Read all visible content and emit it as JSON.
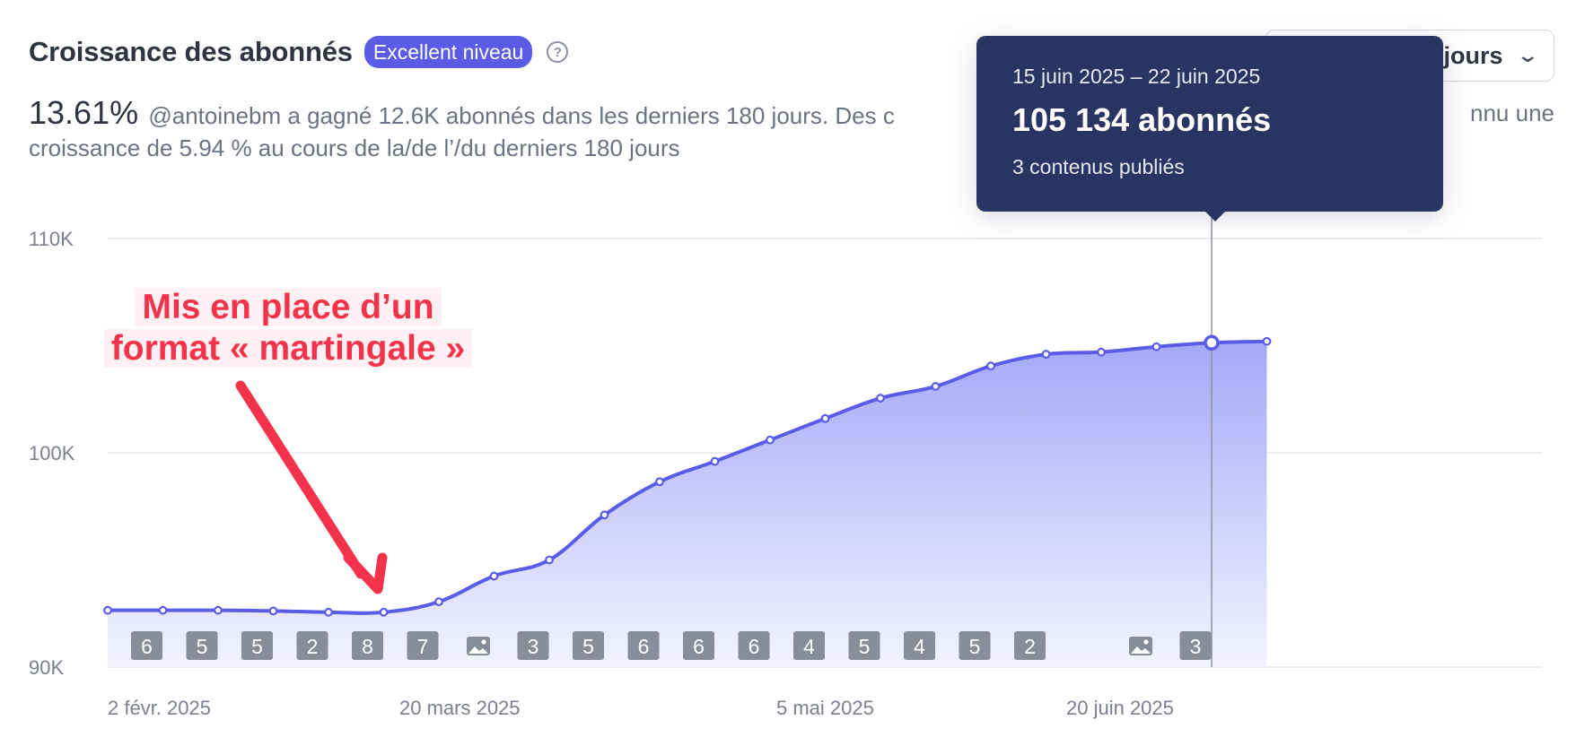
{
  "header": {
    "title": "Croissance des abonnés",
    "badge": "Excellent niveau",
    "help_icon": "question-circle-icon",
    "period_select": "jours"
  },
  "summary": {
    "growth_percent": "13.61%",
    "text": "@antoinebm a gagné 12.6K abonnés dans les derniers 180 jours. Des c",
    "text_tail": "nnu une",
    "line2": "croissance de 5.94 % au cours de la/de l’/du derniers 180 jours"
  },
  "tooltip": {
    "date_range": "15 juin 2025 – 22 juin 2025",
    "value": "105 134 abonnés",
    "posts": "3 contenus publiés"
  },
  "annotation": {
    "line1": "Mis en place d’un",
    "line2": "format « martingale »"
  },
  "colors": {
    "line": "#5b5ce6",
    "area_top": "#a3a8f7",
    "tooltip_bg": "#283461",
    "annotation": "#f2334b",
    "post_badge": "#878e9a",
    "post_badge_active": "#3a3f4b"
  },
  "chart_data": {
    "type": "area",
    "ylim": [
      90000,
      110000
    ],
    "yticks": [
      {
        "value": 110000,
        "label": "110K"
      },
      {
        "value": 100000,
        "label": "100K"
      },
      {
        "value": 90000,
        "label": "90K"
      }
    ],
    "xtick_labels": [
      "2 févr. 2025",
      "20 mars 2025",
      "5 mai 2025",
      "20 juin 2025"
    ],
    "series": [
      {
        "values": [
          92650,
          92650,
          92650,
          92620,
          92560,
          92560,
          93050,
          94250,
          95000,
          97100,
          98650,
          99600,
          100600,
          101600,
          102550,
          103100,
          104050,
          104600,
          104700,
          104950,
          105134,
          105200
        ]
      }
    ],
    "posts_per_week": [
      "6",
      "5",
      "5",
      "2",
      "8",
      "7",
      "image",
      "3",
      "5",
      "6",
      "6",
      "6",
      "4",
      "5",
      "4",
      "5",
      "2",
      "",
      "image",
      "3",
      "",
      ""
    ],
    "highlight_index": 20
  }
}
